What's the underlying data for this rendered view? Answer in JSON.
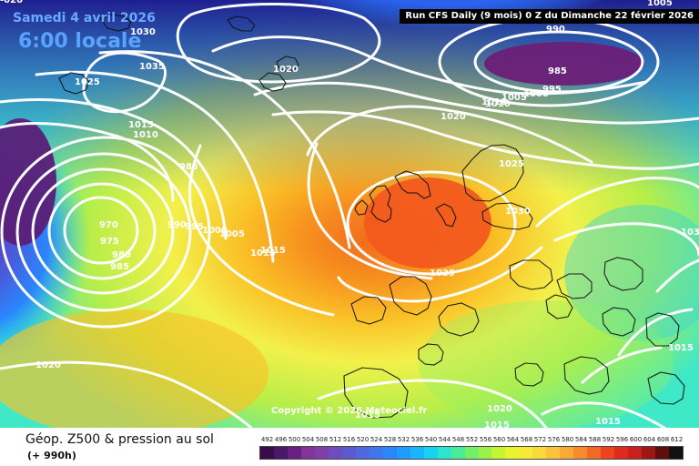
{
  "header": {
    "date": "Samedi 4 avril 2026",
    "time": "6:00 locale",
    "run": "Run CFS Daily (9 mois) 0 Z du Dimanche 22 février 2026",
    "copyright": "Copyright © 2026 Meteociel.fr"
  },
  "legend": {
    "title": "Géop. Z500 & pression au sol",
    "subtitle": "(+ 990h)",
    "scale": [
      "492",
      "496",
      "500",
      "504",
      "508",
      "512",
      "516",
      "520",
      "524",
      "528",
      "532",
      "536",
      "540",
      "544",
      "548",
      "552",
      "556",
      "560",
      "564",
      "568",
      "572",
      "576",
      "580",
      "584",
      "588",
      "592",
      "596",
      "600",
      "604",
      "608",
      "612"
    ],
    "colors": [
      "#3a0b4a",
      "#4a1868",
      "#6a2080",
      "#843398",
      "#7f3fa6",
      "#6d4cbc",
      "#5d5ad0",
      "#4f67df",
      "#3e76ee",
      "#2a86ff",
      "#209cff",
      "#17b6ff",
      "#16d3f1",
      "#2ee4cd",
      "#4aeb98",
      "#72ef66",
      "#98f24a",
      "#c3f535",
      "#e6f52f",
      "#f6ea34",
      "#fada3a",
      "#f9c43a",
      "#f9aa34",
      "#f88b2e",
      "#f46826",
      "#ee431f",
      "#e12a1e",
      "#c8201e",
      "#9e1715",
      "#5e0e0d",
      "#111111"
    ]
  },
  "isobars": [
    {
      "label": "1030"
    },
    {
      "label": "1035"
    },
    {
      "label": "1025"
    },
    {
      "label": "1020"
    },
    {
      "label": "1015"
    },
    {
      "label": "1010"
    },
    {
      "label": "985"
    },
    {
      "label": "970"
    },
    {
      "label": "975"
    },
    {
      "label": "980"
    },
    {
      "label": "985"
    },
    {
      "label": "990"
    },
    {
      "label": "995"
    },
    {
      "label": "1000"
    },
    {
      "label": "1005"
    },
    {
      "label": "1015"
    },
    {
      "label": "1010"
    },
    {
      "label": "1020"
    },
    {
      "label": "990"
    },
    {
      "label": "995"
    },
    {
      "label": "985"
    },
    {
      "label": "1000"
    },
    {
      "label": "1005"
    },
    {
      "label": "1010"
    },
    {
      "label": "1025"
    },
    {
      "label": "1030"
    },
    {
      "label": "1035"
    },
    {
      "label": "1015"
    },
    {
      "label": "1020"
    },
    {
      "label": "1015"
    },
    {
      "label": "1015"
    },
    {
      "label": "1020"
    },
    {
      "label": "1015"
    },
    {
      "label": "1015"
    },
    {
      "label": "1005"
    },
    {
      "label": "103"
    },
    {
      "label": "-020"
    }
  ]
}
